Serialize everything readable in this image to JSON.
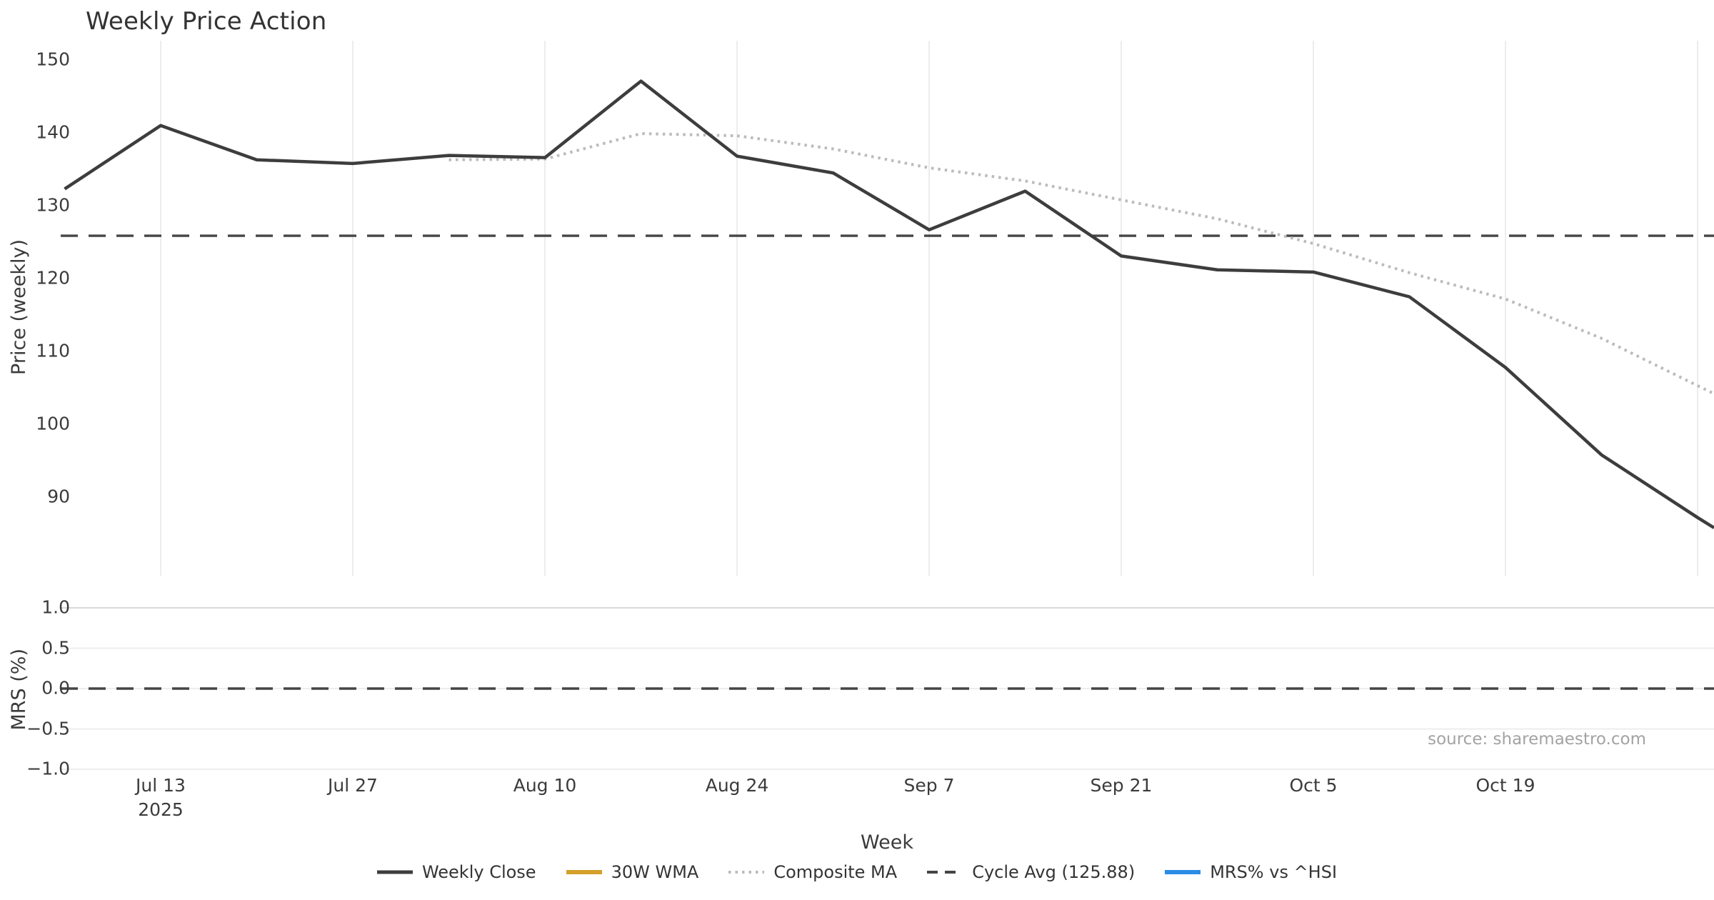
{
  "title": "Weekly Price Action",
  "source_note": "source: sharemaestro.com",
  "axes": {
    "x_label": "Week",
    "x_ticks": [
      "Jul 13",
      "Jul 27",
      "Aug 10",
      "Aug 24",
      "Sep 7",
      "Sep 21",
      "Oct 5",
      "Oct 19"
    ],
    "x_year": "2025",
    "price_label": "Price (weekly)",
    "price_ticks": [
      "150",
      "140",
      "130",
      "120",
      "110",
      "100",
      "90"
    ],
    "mrs_label": "MRS (%)",
    "mrs_ticks": [
      "1.0",
      "0.5",
      "0.0",
      "−0.5",
      "−1.0"
    ]
  },
  "legend": [
    {
      "label": "Weekly Close",
      "color": "#3d3d3d",
      "style": "solid",
      "weight": 5
    },
    {
      "label": "30W WMA",
      "color": "#d4a02a",
      "style": "solid",
      "weight": 6
    },
    {
      "label": "Composite MA",
      "color": "#bbbbbb",
      "style": "dotted",
      "weight": 4
    },
    {
      "label": "Cycle Avg (125.88)",
      "color": "#454545",
      "style": "dashed",
      "weight": 4
    },
    {
      "label": "MRS% vs ^HSI",
      "color": "#2b8ce6",
      "style": "solid",
      "weight": 6
    }
  ],
  "chart_data": [
    {
      "panel": "price",
      "type": "line",
      "title": "Weekly Price Action",
      "xlabel": "Week",
      "ylabel": "Price (weekly)",
      "ylim": [
        79,
        153
      ],
      "grid": "vertical-only",
      "x": [
        "2025-07-06",
        "2025-07-13",
        "2025-07-20",
        "2025-07-27",
        "2025-08-03",
        "2025-08-10",
        "2025-08-17",
        "2025-08-24",
        "2025-08-31",
        "2025-09-07",
        "2025-09-14",
        "2025-09-21",
        "2025-09-28",
        "2025-10-05",
        "2025-10-12",
        "2025-10-19",
        "2025-10-26",
        "2025-11-02"
      ],
      "series": [
        {
          "name": "Weekly Close",
          "color": "#3d3d3d",
          "style": "solid",
          "values": [
            132.3,
            141.0,
            136.3,
            135.8,
            136.9,
            136.6,
            147.1,
            136.8,
            134.5,
            126.7,
            132.0,
            123.1,
            121.2,
            120.9,
            117.5,
            107.8,
            95.8,
            87.2
          ],
          "edge_value": 85.8
        },
        {
          "name": "Composite MA",
          "color": "#bbbbbb",
          "style": "dotted",
          "values": [
            null,
            null,
            null,
            null,
            136.3,
            136.4,
            139.9,
            139.6,
            137.8,
            135.2,
            133.4,
            130.8,
            128.2,
            124.8,
            120.8,
            117.2,
            111.8,
            105.3
          ],
          "edge_value": 104.2
        }
      ],
      "reference_lines": [
        {
          "name": "Cycle Avg",
          "value": 125.88,
          "style": "dashed",
          "color": "#454545"
        }
      ],
      "legend_position": "bottom-center-outside"
    },
    {
      "panel": "mrs",
      "type": "line",
      "ylabel": "MRS (%)",
      "ylim": [
        -1.07,
        1.05
      ],
      "yticks": [
        1.0,
        0.5,
        0.0,
        -0.5,
        -1.0
      ],
      "grid": "horizontal-only",
      "reference_lines": [
        {
          "name": "zero",
          "value": 0.0,
          "style": "dashed",
          "color": "#454545"
        }
      ],
      "series": []
    }
  ]
}
